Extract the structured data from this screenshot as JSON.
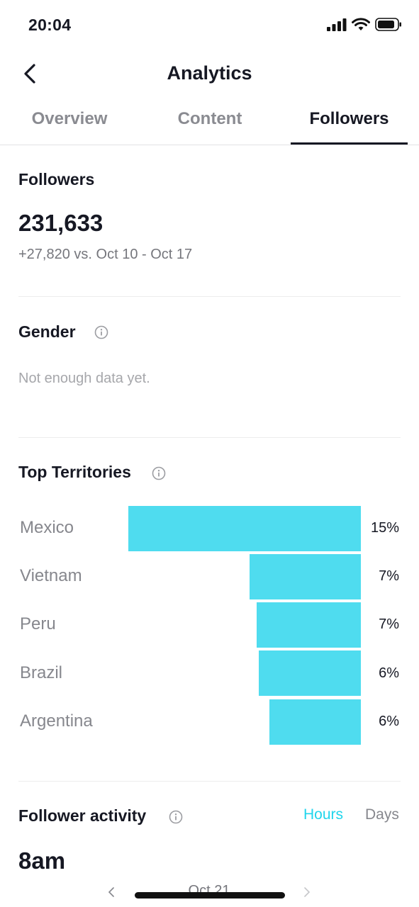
{
  "status_bar": {
    "time": "20:04"
  },
  "header": {
    "title": "Analytics",
    "back_icon": "chevron-left-icon"
  },
  "tabs": [
    {
      "label": "Overview",
      "active": false
    },
    {
      "label": "Content",
      "active": false
    },
    {
      "label": "Followers",
      "active": true
    }
  ],
  "followers": {
    "title": "Followers",
    "count": "231,633",
    "delta": "+27,820 vs. Oct 10 - Oct 17"
  },
  "gender": {
    "title": "Gender",
    "empty_message": "Not enough data yet."
  },
  "territories": {
    "title": "Top Territories",
    "bar_color": "#4fdcef",
    "items": [
      {
        "country": "Mexico",
        "percent": "15%"
      },
      {
        "country": "Vietnam",
        "percent": "7%"
      },
      {
        "country": "Peru",
        "percent": "7%"
      },
      {
        "country": "Brazil",
        "percent": "6%"
      },
      {
        "country": "Argentina",
        "percent": "6%"
      }
    ]
  },
  "activity": {
    "title": "Follower activity",
    "toggle_hours": "Hours",
    "toggle_days": "Days",
    "selected": "Hours",
    "peak_time": "8am",
    "date_label": "Oct 21"
  },
  "colors": {
    "accent": "#20d5ec",
    "text": "#161823",
    "muted": "#86878d"
  }
}
